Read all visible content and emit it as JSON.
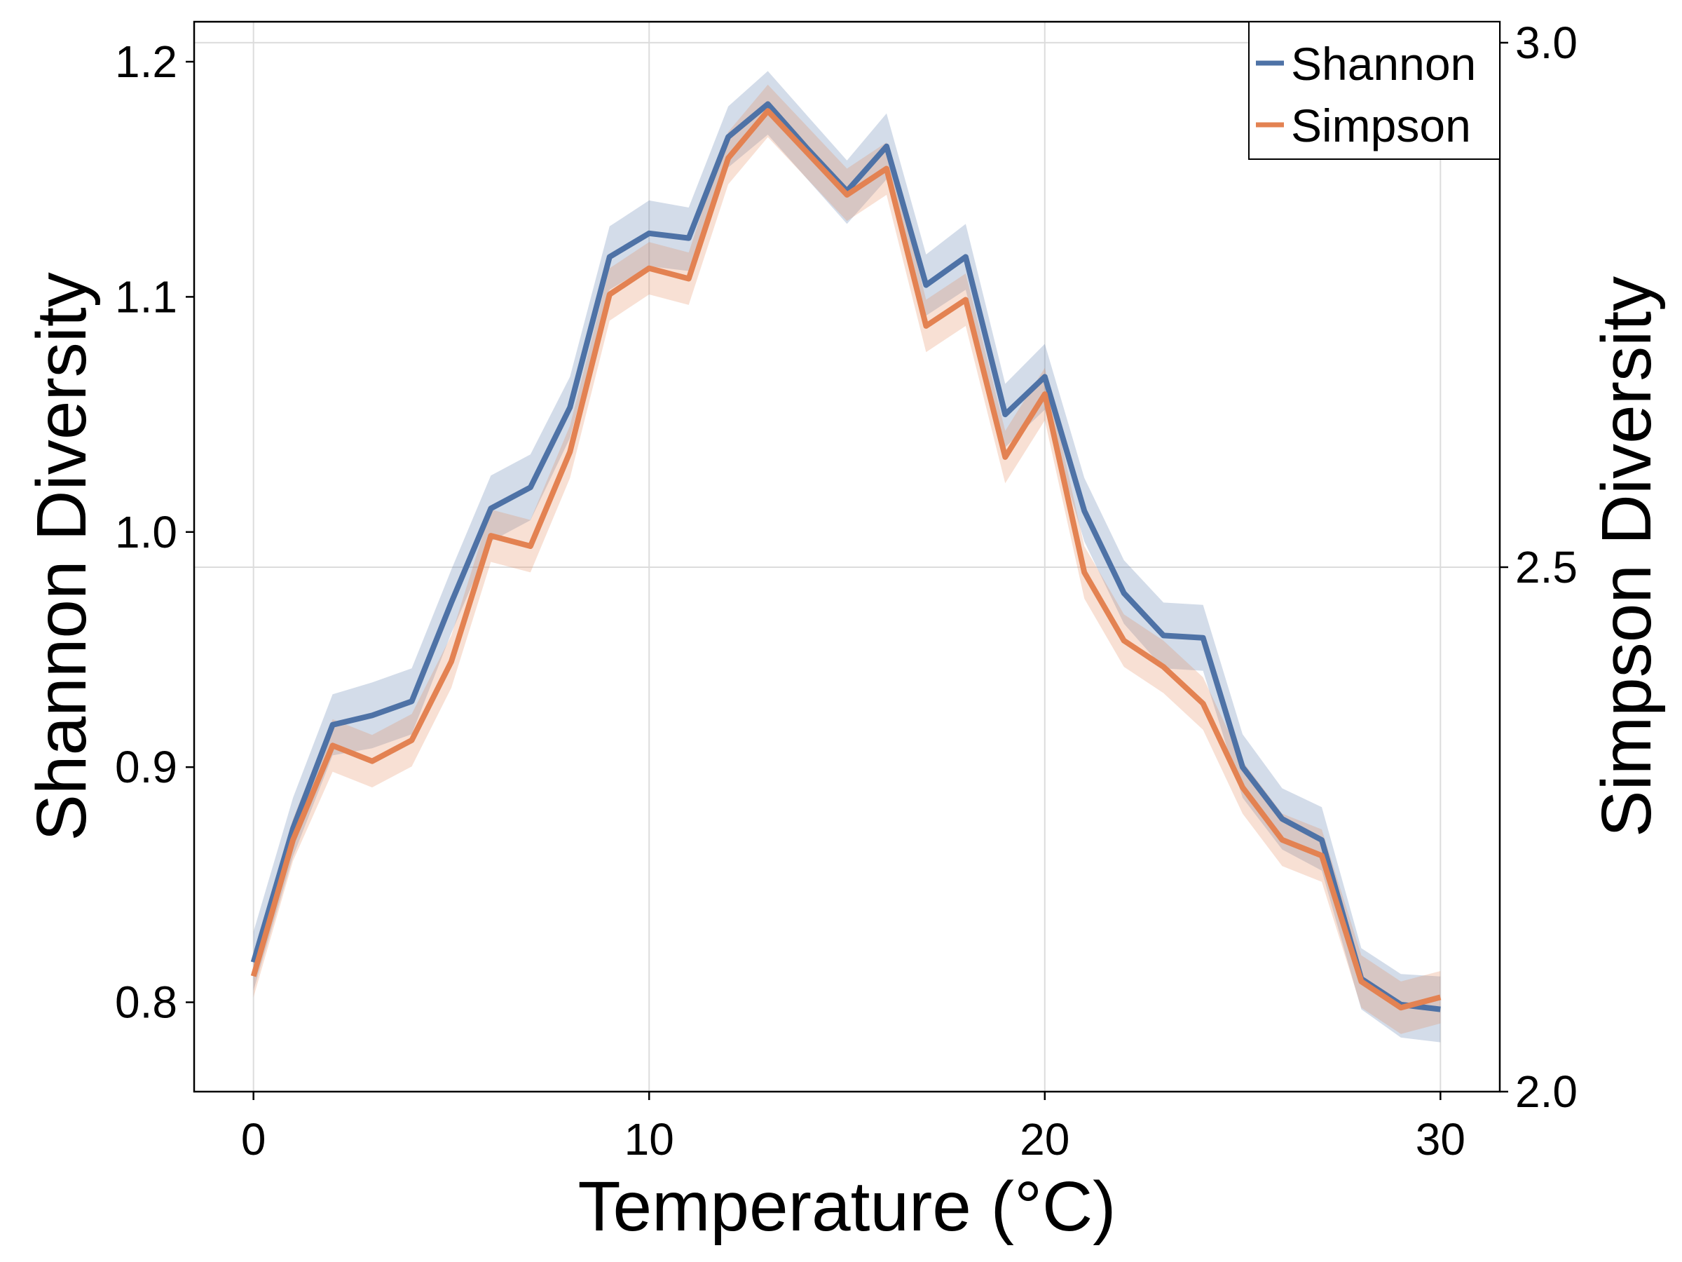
{
  "chart_data": {
    "type": "line",
    "title": "",
    "xlabel": "Temperature (°C)",
    "ylabel": "Shannon Diversity",
    "y2label": "Simpson Diversity",
    "xlim": [
      -1.5,
      31.5
    ],
    "ylim": [
      0.762,
      1.217
    ],
    "y2lim": [
      2.0,
      3.02
    ],
    "xticks": [
      0,
      10,
      20,
      30
    ],
    "yticks": [
      0.8,
      0.9,
      1.0,
      1.1,
      1.2
    ],
    "y2ticks": [
      2.0,
      2.5,
      3.0
    ],
    "xtick_labels": [
      "0",
      "10",
      "20",
      "30"
    ],
    "ytick_labels": [
      "0.8",
      "0.9",
      "1.0",
      "1.1",
      "1.2"
    ],
    "y2tick_labels": [
      "2.0",
      "2.5",
      "3.0"
    ],
    "grid": true,
    "legend_position": "top-right",
    "x": [
      0,
      1,
      2,
      3,
      4,
      5,
      6,
      7,
      8,
      9,
      10,
      11,
      12,
      13,
      14,
      15,
      16,
      17,
      18,
      19,
      20,
      21,
      22,
      23,
      24,
      25,
      26,
      27,
      28,
      29,
      30
    ],
    "series": [
      {
        "name": "Shannon",
        "axis": "left",
        "color": "#4e72a6",
        "values": [
          0.817,
          0.874,
          0.918,
          0.922,
          0.928,
          0.97,
          1.01,
          1.019,
          1.053,
          1.117,
          1.127,
          1.125,
          1.168,
          1.182,
          1.163,
          1.145,
          1.164,
          1.105,
          1.117,
          1.05,
          1.066,
          1.009,
          0.974,
          0.956,
          0.955,
          0.9,
          0.878,
          0.869,
          0.81,
          0.799,
          0.797
        ],
        "lower": [
          0.805,
          0.862,
          0.905,
          0.908,
          0.914,
          0.957,
          0.996,
          1.005,
          1.04,
          1.103,
          1.113,
          1.111,
          1.155,
          1.169,
          1.15,
          1.131,
          1.15,
          1.092,
          1.103,
          1.036,
          1.052,
          0.996,
          0.961,
          0.942,
          0.941,
          0.887,
          0.865,
          0.856,
          0.797,
          0.785,
          0.783
        ],
        "upper": [
          0.83,
          0.887,
          0.931,
          0.936,
          0.942,
          0.984,
          1.024,
          1.033,
          1.066,
          1.13,
          1.141,
          1.138,
          1.181,
          1.196,
          1.177,
          1.158,
          1.178,
          1.118,
          1.131,
          1.063,
          1.08,
          1.023,
          0.988,
          0.97,
          0.969,
          0.914,
          0.891,
          0.883,
          0.823,
          0.812,
          0.811
        ]
      },
      {
        "name": "Simpson",
        "axis": "right",
        "color": "#e38252",
        "values": [
          2.11,
          2.24,
          2.33,
          2.315,
          2.335,
          2.41,
          2.53,
          2.52,
          2.61,
          2.76,
          2.785,
          2.775,
          2.89,
          2.935,
          2.895,
          2.855,
          2.88,
          2.73,
          2.755,
          2.605,
          2.665,
          2.495,
          2.43,
          2.405,
          2.37,
          2.29,
          2.24,
          2.225,
          2.105,
          2.08,
          2.09
        ],
        "lower": [
          2.09,
          2.22,
          2.305,
          2.29,
          2.31,
          2.385,
          2.505,
          2.495,
          2.585,
          2.735,
          2.76,
          2.75,
          2.865,
          2.91,
          2.87,
          2.83,
          2.855,
          2.705,
          2.73,
          2.58,
          2.64,
          2.47,
          2.405,
          2.38,
          2.345,
          2.265,
          2.215,
          2.2,
          2.08,
          2.055,
          2.065
        ],
        "upper": [
          2.13,
          2.26,
          2.355,
          2.34,
          2.36,
          2.435,
          2.555,
          2.545,
          2.635,
          2.785,
          2.81,
          2.8,
          2.915,
          2.96,
          2.92,
          2.88,
          2.905,
          2.755,
          2.78,
          2.63,
          2.69,
          2.52,
          2.455,
          2.43,
          2.395,
          2.315,
          2.265,
          2.25,
          2.13,
          2.105,
          2.115
        ]
      }
    ]
  }
}
